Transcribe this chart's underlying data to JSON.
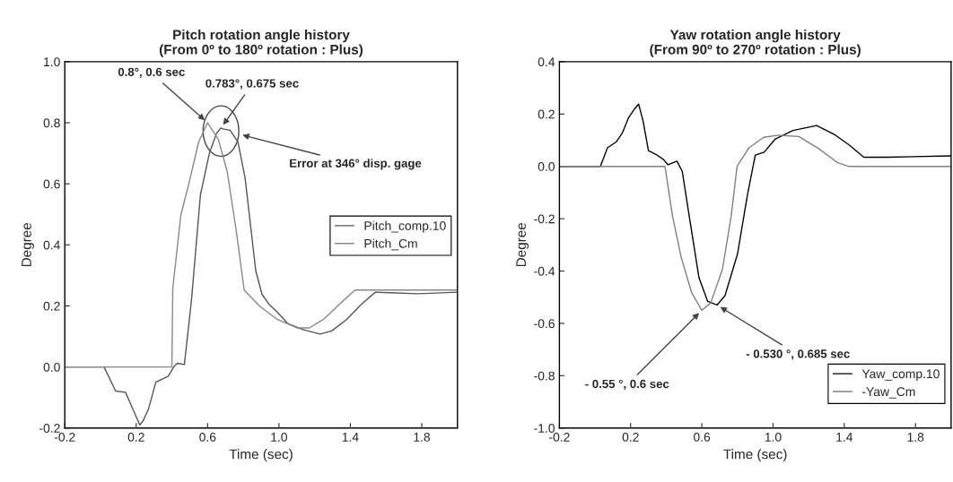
{
  "chart_data": [
    {
      "type": "line",
      "title": "Pitch rotation angle history\n(From 0º to 180º rotation : Plus)",
      "xlabel": "Time (sec)",
      "ylabel": "Degree",
      "xlim": [
        -0.2,
        2.0
      ],
      "ylim": [
        -0.2,
        1.0
      ],
      "xticks": [
        -0.2,
        0.2,
        0.6,
        {
          "value": 1.0,
          "label": "1.0"
        },
        1.4,
        1.8
      ],
      "yticks": [
        {
          "value": -0.2,
          "label": "-0.2"
        },
        {
          "value": 0.0,
          "label": "0.0"
        },
        {
          "value": 0.2,
          "label": "0.2"
        },
        {
          "value": 0.4,
          "label": "0.4"
        },
        {
          "value": 0.6,
          "label": "0.6"
        },
        {
          "value": 0.8,
          "label": "0.8"
        },
        {
          "value": 1.0,
          "label": "1.0"
        }
      ],
      "grid": false,
      "legend": "center right",
      "marker": "none",
      "line_style": "solid",
      "series": [
        {
          "name": "Pitch_comp.10",
          "color": "#555555",
          "x": [
            -0.2,
            0.02,
            0.085,
            0.14,
            0.18,
            0.22,
            0.24,
            0.27,
            0.31,
            0.38,
            0.41,
            0.43,
            0.47,
            0.51,
            0.56,
            0.61,
            0.65,
            0.675,
            0.686,
            0.727,
            0.77,
            0.81,
            0.87,
            0.905,
            0.946,
            0.99,
            1.05,
            1.13,
            1.23,
            1.295,
            1.38,
            1.46,
            1.54,
            1.62,
            1.78,
            2.0
          ],
          "values": [
            0,
            0,
            -0.079,
            -0.083,
            -0.136,
            -0.19,
            -0.175,
            -0.136,
            -0.05,
            -0.03,
            0,
            0.012,
            0.008,
            0.22,
            0.564,
            0.7,
            0.765,
            0.783,
            0.78,
            0.775,
            0.737,
            0.62,
            0.315,
            0.238,
            0.204,
            0.18,
            0.142,
            0.123,
            0.108,
            0.118,
            0.156,
            0.204,
            0.245,
            0.243,
            0.24,
            0.245
          ]
        },
        {
          "name": "Pitch_Cm",
          "color": "#888888",
          "x": [
            -0.2,
            0.4,
            0.405,
            0.45,
            0.5,
            0.55,
            0.6,
            0.66,
            0.71,
            0.76,
            0.805,
            0.89,
            0.99,
            1.1,
            1.17,
            1.25,
            1.345,
            1.426,
            2.0
          ],
          "values": [
            0,
            0,
            0.257,
            0.497,
            0.612,
            0.737,
            0.8,
            0.746,
            0.64,
            0.449,
            0.252,
            0.2,
            0.156,
            0.128,
            0.128,
            0.156,
            0.209,
            0.252,
            0.252
          ]
        }
      ],
      "annotations": [
        {
          "text": "0.8°, 0.6 sec",
          "x": 0.6,
          "y": 0.8
        },
        {
          "text": "0.783°, 0.675 sec",
          "x": 0.675,
          "y": 0.783
        },
        "Error at 346° disp. gage"
      ]
    },
    {
      "type": "line",
      "title": "Yaw rotation angle history\n(From 90º to 270º rotation : Plus)",
      "xlabel": "Time (sec)",
      "ylabel": "Degree",
      "xlim": [
        -0.2,
        2.0
      ],
      "ylim": [
        -1.0,
        0.4
      ],
      "xticks": [
        -0.2,
        0.2,
        0.6,
        {
          "value": 1.0,
          "label": "1.0"
        },
        1.4,
        1.8
      ],
      "yticks": [
        {
          "value": -1.0,
          "label": "-1.0"
        },
        {
          "value": -0.8,
          "label": "-0.8"
        },
        {
          "value": -0.6,
          "label": "-0.6"
        },
        {
          "value": -0.4,
          "label": "-0.4"
        },
        {
          "value": -0.2,
          "label": "-0.2"
        },
        {
          "value": 0.0,
          "label": "0.0"
        },
        {
          "value": 0.2,
          "label": "0.2"
        },
        {
          "value": 0.4,
          "label": "0.4"
        }
      ],
      "grid": false,
      "legend": "lower right",
      "marker": "none",
      "line_style": "solid",
      "series": [
        {
          "name": "Yaw_comp.10",
          "color": "#000000",
          "x": [
            -0.2,
            0.03,
            0.07,
            0.12,
            0.154,
            0.187,
            0.22,
            0.245,
            0.27,
            0.3,
            0.344,
            0.385,
            0.41,
            0.46,
            0.49,
            0.534,
            0.584,
            0.633,
            0.685,
            0.73,
            0.8,
            0.856,
            0.9,
            0.95,
            1.013,
            1.112,
            1.245,
            1.344,
            1.427,
            1.51,
            1.64,
            2.0
          ],
          "values": [
            0,
            0,
            0.071,
            0.094,
            0.128,
            0.184,
            0.218,
            0.238,
            0.173,
            0.06,
            0.045,
            0.026,
            0.006,
            0.02,
            -0.019,
            -0.211,
            -0.426,
            -0.516,
            -0.53,
            -0.494,
            -0.336,
            -0.11,
            0.043,
            0.054,
            0.105,
            0.137,
            0.156,
            0.122,
            0.082,
            0.035,
            0.035,
            0.04
          ]
        },
        {
          "name": "-Yaw_Cm",
          "color": "#808080",
          "x": [
            -0.2,
            0.393,
            0.435,
            0.484,
            0.542,
            0.6,
            0.65,
            0.716,
            0.765,
            0.798,
            0.865,
            0.947,
            1.03,
            1.145,
            1.26,
            1.36,
            1.423,
            2.0
          ],
          "values": [
            0,
            0,
            -0.189,
            -0.347,
            -0.482,
            -0.55,
            -0.522,
            -0.392,
            -0.189,
            0,
            0.071,
            0.111,
            0.119,
            0.114,
            0.066,
            0.015,
            0,
            0
          ]
        }
      ],
      "annotations": [
        {
          "text": "- 0.55 °, 0.6 sec",
          "x": 0.6,
          "y": -0.55
        },
        {
          "text": "- 0.530 °, 0.685 sec",
          "x": 0.685,
          "y": -0.53
        }
      ]
    }
  ]
}
